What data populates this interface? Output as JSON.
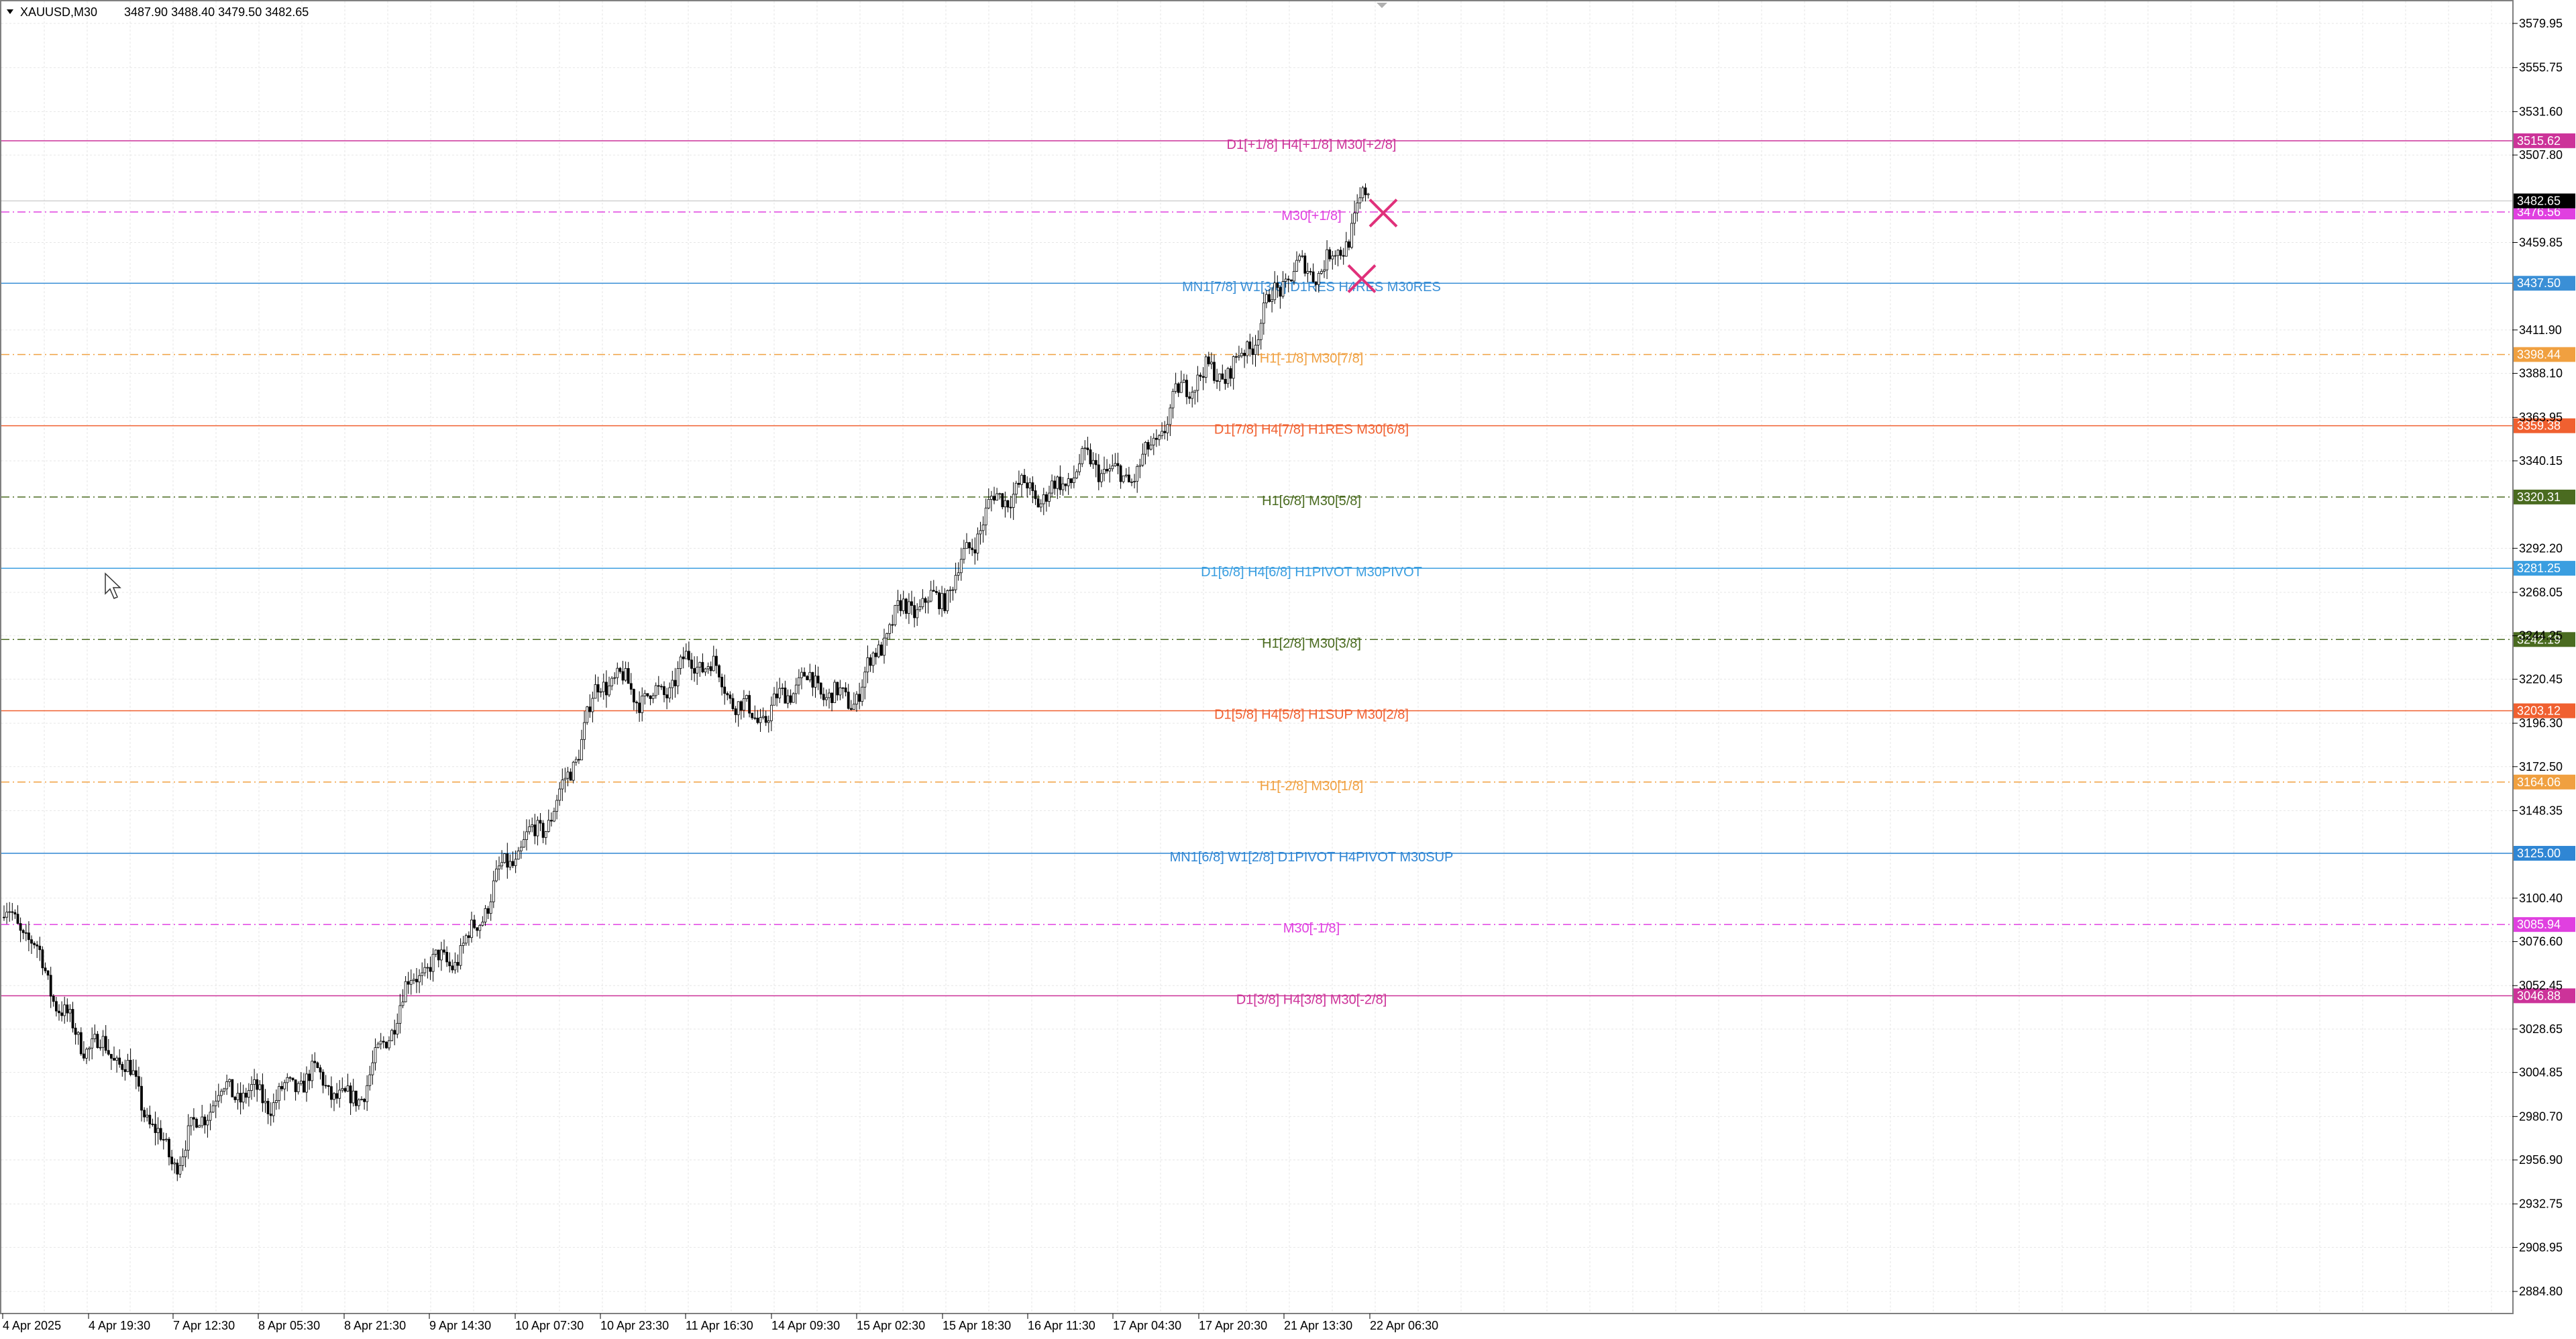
{
  "header": {
    "collapse_icon": "triangle-down-icon",
    "symbol": "XAUUSD,M30",
    "ohlc": "3487.90 3488.40 3479.50 3482.65"
  },
  "colors": {
    "grid": "#e4e4e4",
    "frame": "#808080",
    "candle": "#000000",
    "cross_marker": "#e0307a",
    "cursor_icon": "arrow-cursor-icon"
  },
  "price_axis": {
    "ticks": [
      "3579.95",
      "3555.75",
      "3531.60",
      "3507.80",
      "3459.85",
      "3411.90",
      "3388.10",
      "3363.95",
      "3340.15",
      "3292.20",
      "3268.05",
      "3244.25",
      "3220.45",
      "3196.30",
      "3172.50",
      "3148.35",
      "3100.40",
      "3076.60",
      "3052.45",
      "3028.65",
      "3004.85",
      "2980.70",
      "2956.90",
      "2932.75",
      "2908.95",
      "2884.80"
    ],
    "current_price": "3482.65"
  },
  "time_axis": {
    "labels": [
      "4 Apr 2025",
      "4 Apr 19:30",
      "7 Apr 12:30",
      "8 Apr 05:30",
      "8 Apr 21:30",
      "9 Apr 14:30",
      "10 Apr 07:30",
      "10 Apr 23:30",
      "11 Apr 16:30",
      "14 Apr 09:30",
      "15 Apr 02:30",
      "15 Apr 18:30",
      "16 Apr 11:30",
      "17 Apr 04:30",
      "17 Apr 20:30",
      "21 Apr 13:30",
      "22 Apr 06:30"
    ]
  },
  "levels": [
    {
      "label": "D1[+1/8] H4[+1/8] M30[+2/8]",
      "price": 3515.62,
      "tag": "3515.62",
      "color": "#cc3399",
      "tag_bg": "#cc3399",
      "style": "solid"
    },
    {
      "label": "M30[+1/8]",
      "price": 3476.56,
      "tag": "3476.56",
      "color": "#e040e0",
      "tag_bg": "#e040e0",
      "style": "dashdot"
    },
    {
      "label": "MN1[7/8] W1[3/8] D1RES H4RES M30RES",
      "price": 3437.5,
      "tag": "3437.50",
      "color": "#3a8fd6",
      "tag_bg": "#3a8fd6",
      "style": "solid"
    },
    {
      "label": "H1[-1/8] M30[7/8]",
      "price": 3398.44,
      "tag": "3398.44",
      "color": "#f0a040",
      "tag_bg": "#f0a040",
      "style": "dashdot"
    },
    {
      "label": "D1[7/8] H4[7/8] H1RES M30[6/8]",
      "price": 3359.38,
      "tag": "3359.38",
      "color": "#f06030",
      "tag_bg": "#f06030",
      "style": "solid"
    },
    {
      "label": "H1[6/8] M30[5/8]",
      "price": 3320.31,
      "tag": "3320.31",
      "color": "#4a6b20",
      "tag_bg": "#4a6b20",
      "style": "dashdot"
    },
    {
      "label": "D1[6/8] H4[6/8] H1PIVOT M30PIVOT",
      "price": 3281.25,
      "tag": "3281.25",
      "color": "#3a9ee0",
      "tag_bg": "#3a9ee0",
      "style": "solid"
    },
    {
      "label": "H1[2/8] M30[3/8]",
      "price": 3242.19,
      "tag": "3242.19",
      "color": "#4a6b20",
      "tag_bg": "#4a6b20",
      "style": "dashdot"
    },
    {
      "label": "D1[5/8] H4[5/8] H1SUP M30[2/8]",
      "price": 3203.12,
      "tag": "3203.12",
      "color": "#f06030",
      "tag_bg": "#f06030",
      "style": "solid"
    },
    {
      "label": "H1[-2/8] M30[1/8]",
      "price": 3164.06,
      "tag": "3164.06",
      "color": "#f0a040",
      "tag_bg": "#f0a040",
      "style": "dashdot"
    },
    {
      "label": "MN1[6/8] W1[2/8] D1PIVOT H4PIVOT M30SUP",
      "price": 3125.0,
      "tag": "3125.00",
      "color": "#2f86d4",
      "tag_bg": "#2f86d4",
      "style": "solid"
    },
    {
      "label": "M30[-1/8]",
      "price": 3085.94,
      "tag": "3085.94",
      "color": "#e040e0",
      "tag_bg": "#e040e0",
      "style": "dashdot"
    },
    {
      "label": "D1[3/8] H4[3/8] M30[-2/8]",
      "price": 3046.88,
      "tag": "3046.88",
      "color": "#cc3399",
      "tag_bg": "#cc3399",
      "style": "solid"
    }
  ],
  "chart_data": {
    "type": "candlestick",
    "symbol": "XAUUSD",
    "timeframe": "M30",
    "ylim": [
      2872.7,
      3592.05
    ],
    "grid": true,
    "anchors": [
      {
        "t": "4 Apr 2025",
        "p": 3090
      },
      {
        "t": "4 Apr 19:30",
        "p": 3025
      },
      {
        "t": "7 Apr 12:30",
        "p": 2965
      },
      {
        "t": "8 Apr 05:30",
        "p": 3000
      },
      {
        "t": "8 Apr 21:30",
        "p": 2990
      },
      {
        "t": "9 Apr 14:30",
        "p": 3060
      },
      {
        "t": "10 Apr 07:30",
        "p": 3115
      },
      {
        "t": "10 Apr 23:30",
        "p": 3210
      },
      {
        "t": "11 Apr 16:30",
        "p": 3225
      },
      {
        "t": "14 Apr 09:30",
        "p": 3205
      },
      {
        "t": "15 Apr 02:30",
        "p": 3220
      },
      {
        "t": "15 Apr 18:30",
        "p": 3275
      },
      {
        "t": "16 Apr 11:30",
        "p": 3330
      },
      {
        "t": "17 Apr 04:30",
        "p": 3330
      },
      {
        "t": "17 Apr 20:30",
        "p": 3380
      },
      {
        "t": "21 Apr 13:30",
        "p": 3430
      },
      {
        "t": "22 Apr 06:30",
        "p": 3482.65
      }
    ],
    "markers": [
      {
        "type": "cross",
        "time": "22 Apr 06:30",
        "price": 3476
      },
      {
        "type": "cross",
        "time": "21 Apr 13:30",
        "price": 3440
      }
    ]
  }
}
